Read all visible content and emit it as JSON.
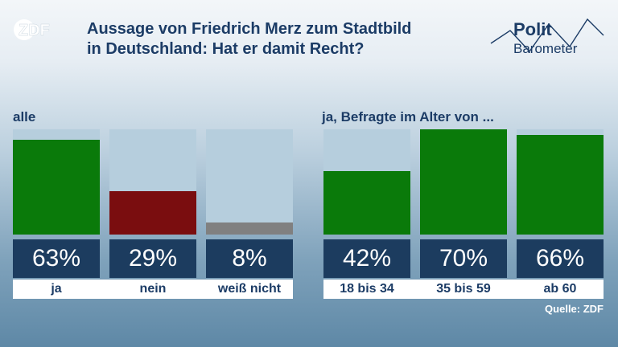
{
  "brand": {
    "logo_text": "ZDF",
    "politbarometer_line1": "Polit",
    "politbarometer_line2": "Barometer"
  },
  "title_lines": [
    "Aussage von Friedrich Merz zum Stadtbild",
    "in Deutschland: Hat er damit Recht?"
  ],
  "source": "Quelle: ZDF",
  "colors": {
    "ja": "#0a7a0a",
    "nein": "#7a0d0f",
    "weiss_nicht": "#808080",
    "title": "#1c3c66",
    "label_bg": "#1c3c5f"
  },
  "chart_data": [
    {
      "type": "bar",
      "title": "alle",
      "ylim": [
        0,
        70
      ],
      "categories": [
        "ja",
        "nein",
        "weiß nicht"
      ],
      "values": [
        63,
        29,
        8
      ],
      "value_labels": [
        "63%",
        "29%",
        "8%"
      ],
      "bar_colors": [
        "#0a7a0a",
        "#7a0d0f",
        "#808080"
      ]
    },
    {
      "type": "bar",
      "title": "ja, Befragte im Alter von ...",
      "ylim": [
        0,
        70
      ],
      "categories": [
        "18 bis 34",
        "35 bis 59",
        "ab 60"
      ],
      "values": [
        42,
        70,
        66
      ],
      "value_labels": [
        "42%",
        "70%",
        "66%"
      ],
      "bar_colors": [
        "#0a7a0a",
        "#0a7a0a",
        "#0a7a0a"
      ]
    }
  ]
}
